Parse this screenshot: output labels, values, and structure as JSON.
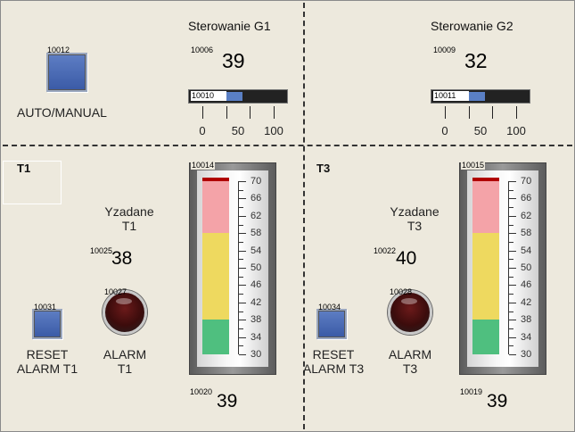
{
  "colors": {
    "panel": "#ede9dd",
    "button": "#3a5aa6",
    "slider_fill": "#5a7fc4",
    "gauge_red": "#f4a3a8",
    "gauge_yellow": "#eed95f",
    "gauge_green": "#4fbf7f",
    "alarm_off": "#3c0c0c"
  },
  "g1": {
    "title": "Sterowanie G1",
    "tag": "10006",
    "value": "39",
    "slider_tag": "10010",
    "slider_level": 0.55
  },
  "g2": {
    "title": "Sterowanie G2",
    "tag": "10009",
    "value": "32",
    "slider_tag": "10011",
    "slider_level": 0.55
  },
  "slider_ticks": [
    "0",
    "50",
    "100"
  ],
  "auto_manual": {
    "tag": "10012",
    "label": "AUTO/MANUAL"
  },
  "t1": {
    "title": "T1",
    "setpoint_label_1": "Yzadane",
    "setpoint_label_2": "T1",
    "setpoint_tag": "10025",
    "setpoint_value": "38",
    "reset_tag": "10031",
    "reset_label_1": "RESET",
    "reset_label_2": "ALARM T1",
    "alarm_tag": "10027",
    "alarm_label_1": "ALARM",
    "alarm_label_2": "T1",
    "gauge_tag": "10014",
    "temp_tag": "10020",
    "temp_value": "39"
  },
  "t3": {
    "title": "T3",
    "setpoint_label_1": "Yzadane",
    "setpoint_label_2": "T3",
    "setpoint_tag": "10022",
    "setpoint_value": "40",
    "reset_tag": "10034",
    "reset_label_1": "RESET",
    "reset_label_2": "ALARM T3",
    "alarm_tag": "10028",
    "alarm_label_1": "ALARM",
    "alarm_label_2": "T3",
    "gauge_tag": "10015",
    "temp_tag": "10019",
    "temp_value": "39"
  },
  "gauge_scale": [
    "70",
    "66",
    "62",
    "58",
    "54",
    "50",
    "46",
    "42",
    "38",
    "34",
    "30"
  ],
  "gauge_range": [
    30,
    70
  ],
  "gauge_zones": {
    "red_above": 58,
    "yellow_above": 38
  }
}
